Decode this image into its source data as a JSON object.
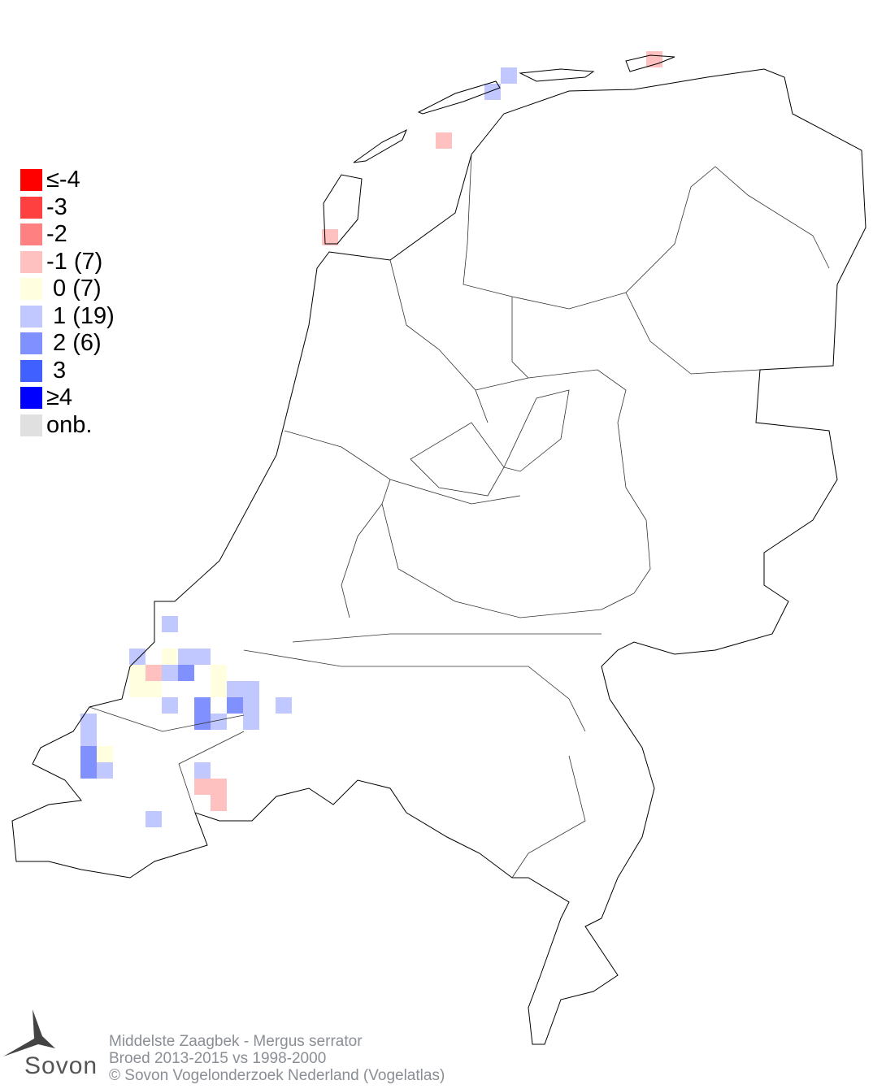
{
  "legend": {
    "items": [
      {
        "label": "≤-4",
        "color": "#ff0000"
      },
      {
        "label": "-3",
        "color": "#ff4040"
      },
      {
        "label": "-2",
        "color": "#ff8080"
      },
      {
        "label": "-1 (7)",
        "color": "#ffc0c0"
      },
      {
        "label": " 0 (7)",
        "color": "#ffffe0"
      },
      {
        "label": " 1 (19)",
        "color": "#c0c8ff"
      },
      {
        "label": " 2 (6)",
        "color": "#8090ff"
      },
      {
        "label": " 3",
        "color": "#4060ff"
      },
      {
        "label": "≥4",
        "color": "#0000ff"
      },
      {
        "label": "onb.",
        "color": "#e0e0e0"
      }
    ]
  },
  "footer": {
    "species": "Middelste Zaagbek - Mergus serrator",
    "period": "Broed 2013-2015 vs 1998-2000",
    "copyright": "© Sovon Vogelonderzoek Nederland (Vogelatlas)"
  },
  "logo": {
    "text": "Sovon"
  }
}
